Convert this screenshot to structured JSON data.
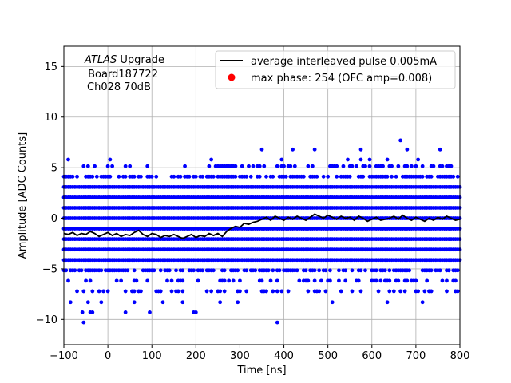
{
  "chart_data": {
    "type": "scatter",
    "title": "",
    "xlabel": "Time [ns]",
    "ylabel": "Amplitude [ADC Counts]",
    "xlim": [
      -100,
      800
    ],
    "ylim": [
      -12.5,
      17
    ],
    "xticks": [
      -100,
      0,
      100,
      200,
      300,
      400,
      500,
      600,
      700,
      800
    ],
    "yticks": [
      -10,
      -5,
      0,
      5,
      10,
      15
    ],
    "grid": true,
    "legend_position": "top-right",
    "annotation": {
      "italic": "ATLAS",
      "rest": " Upgrade",
      "line2": " Board187722",
      "line3": "Ch028 70dB"
    },
    "series": [
      {
        "name": "average interleaved pulse 0.005mA",
        "kind": "line",
        "color": "#000000",
        "points": [
          [
            -100,
            -1.5
          ],
          [
            -90,
            -1.6
          ],
          [
            -80,
            -1.4
          ],
          [
            -70,
            -1.7
          ],
          [
            -60,
            -1.5
          ],
          [
            -50,
            -1.6
          ],
          [
            -40,
            -1.3
          ],
          [
            -30,
            -1.5
          ],
          [
            -20,
            -1.8
          ],
          [
            -10,
            -1.6
          ],
          [
            0,
            -1.4
          ],
          [
            10,
            -1.7
          ],
          [
            20,
            -1.5
          ],
          [
            30,
            -1.8
          ],
          [
            40,
            -1.6
          ],
          [
            50,
            -1.7
          ],
          [
            60,
            -1.4
          ],
          [
            70,
            -1.2
          ],
          [
            80,
            -1.6
          ],
          [
            90,
            -1.8
          ],
          [
            100,
            -1.5
          ],
          [
            110,
            -1.6
          ],
          [
            120,
            -1.9
          ],
          [
            130,
            -1.7
          ],
          [
            140,
            -1.8
          ],
          [
            150,
            -1.6
          ],
          [
            160,
            -1.8
          ],
          [
            170,
            -2.0
          ],
          [
            180,
            -1.8
          ],
          [
            190,
            -1.6
          ],
          [
            200,
            -1.9
          ],
          [
            210,
            -1.7
          ],
          [
            220,
            -1.8
          ],
          [
            230,
            -1.5
          ],
          [
            240,
            -1.7
          ],
          [
            250,
            -1.5
          ],
          [
            260,
            -1.8
          ],
          [
            270,
            -1.3
          ],
          [
            280,
            -1.0
          ],
          [
            290,
            -0.8
          ],
          [
            300,
            -0.9
          ],
          [
            310,
            -0.5
          ],
          [
            320,
            -0.6
          ],
          [
            330,
            -0.4
          ],
          [
            340,
            -0.3
          ],
          [
            350,
            -0.1
          ],
          [
            360,
            0.1
          ],
          [
            370,
            -0.2
          ],
          [
            380,
            0.2
          ],
          [
            390,
            0.0
          ],
          [
            400,
            -0.2
          ],
          [
            410,
            0.1
          ],
          [
            420,
            -0.1
          ],
          [
            430,
            0.2
          ],
          [
            440,
            0.0
          ],
          [
            450,
            -0.2
          ],
          [
            460,
            0.1
          ],
          [
            470,
            0.4
          ],
          [
            480,
            0.2
          ],
          [
            490,
            0.0
          ],
          [
            500,
            0.3
          ],
          [
            510,
            0.1
          ],
          [
            520,
            -0.1
          ],
          [
            530,
            0.2
          ],
          [
            540,
            0.0
          ],
          [
            550,
            0.1
          ],
          [
            560,
            -0.2
          ],
          [
            570,
            0.2
          ],
          [
            580,
            0.0
          ],
          [
            590,
            -0.3
          ],
          [
            600,
            -0.1
          ],
          [
            610,
            0.1
          ],
          [
            620,
            -0.2
          ],
          [
            630,
            -0.1
          ],
          [
            640,
            0.0
          ],
          [
            650,
            0.2
          ],
          [
            660,
            -0.1
          ],
          [
            670,
            0.3
          ],
          [
            680,
            0.0
          ],
          [
            690,
            -0.2
          ],
          [
            700,
            0.1
          ],
          [
            710,
            -0.1
          ],
          [
            720,
            -0.3
          ],
          [
            730,
            0.0
          ],
          [
            740,
            -0.2
          ],
          [
            750,
            0.1
          ],
          [
            760,
            -0.1
          ],
          [
            770,
            0.2
          ],
          [
            780,
            0.0
          ],
          [
            790,
            -0.2
          ],
          [
            800,
            -0.1
          ]
        ]
      },
      {
        "name": "max phase: 254 (OFC amp=0.008)",
        "kind": "markers",
        "color": "#ff0000",
        "points": []
      }
    ],
    "samples": {
      "color": "#0000ff",
      "x_step": 5,
      "level_step": 1.03,
      "dense_levels": [
        -4,
        -3,
        -2,
        -1,
        0,
        1,
        2,
        3
      ],
      "medium_levels": [
        -5,
        4
      ],
      "sparse_levels": [
        -7,
        -6,
        5
      ],
      "outlier_points": [
        [
          -55,
          -10.3
        ],
        [
          -58,
          -9.3
        ],
        [
          -40,
          -9.3
        ],
        [
          -35,
          -9.3
        ],
        [
          -85,
          -8.3
        ],
        [
          -45,
          -8.3
        ],
        [
          -15,
          -8.3
        ],
        [
          40,
          -9.3
        ],
        [
          60,
          -8.3
        ],
        [
          95,
          -9.3
        ],
        [
          125,
          -8.3
        ],
        [
          170,
          -8.3
        ],
        [
          195,
          -9.3
        ],
        [
          200,
          -9.3
        ],
        [
          255,
          -8.3
        ],
        [
          295,
          -8.3
        ],
        [
          385,
          -10.3
        ],
        [
          510,
          -8.3
        ],
        [
          635,
          -8.3
        ],
        [
          715,
          -8.3
        ],
        [
          -90,
          5.8
        ],
        [
          5,
          5.8
        ],
        [
          235,
          5.8
        ],
        [
          350,
          6.8
        ],
        [
          420,
          6.8
        ],
        [
          470,
          6.8
        ],
        [
          575,
          6.8
        ],
        [
          665,
          7.7
        ],
        [
          680,
          6.8
        ],
        [
          755,
          6.8
        ],
        [
          395,
          5.8
        ],
        [
          545,
          5.8
        ],
        [
          595,
          5.8
        ],
        [
          635,
          5.8
        ],
        [
          705,
          5.8
        ],
        [
          575,
          5.8
        ]
      ]
    }
  }
}
